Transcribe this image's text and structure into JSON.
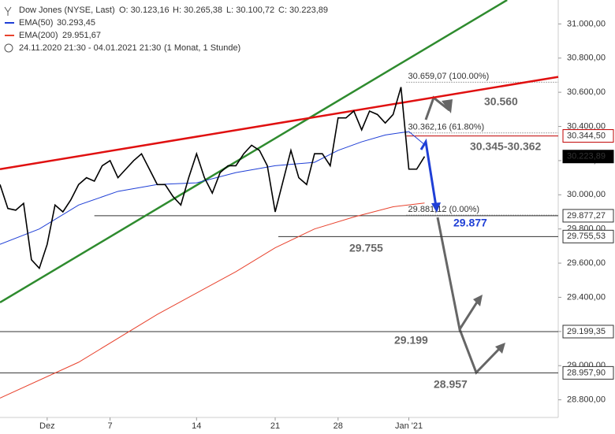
{
  "chart_data": {
    "type": "line",
    "header": {
      "instrument": "Dow Jones (NYSE, Last)",
      "ohlc": [
        "O: 30.123,16",
        "H: 30.265,38",
        "L: 30.100,72",
        "C: 30.223,89"
      ],
      "range": "24.11.2020 21:30 - 04.01.2021 21:30",
      "interval": "(1 Monat, 1 Stunde)"
    },
    "xlim": [
      0,
      71
    ],
    "xticks": [
      {
        "value": 6,
        "label": "Dez"
      },
      {
        "value": 14,
        "label": "7"
      },
      {
        "value": 25,
        "label": "14"
      },
      {
        "value": 35,
        "label": "21"
      },
      {
        "value": 43,
        "label": "28"
      },
      {
        "value": 52,
        "label": "Jan '21"
      }
    ],
    "ylim": [
      28600,
      31140
    ],
    "yticks": [
      {
        "value": 28800,
        "label": "28.800,00"
      },
      {
        "value": 29000,
        "label": "29.000,00"
      },
      {
        "value": 29200,
        "label": "29.200,00"
      },
      {
        "value": 29400,
        "label": "29.400,00"
      },
      {
        "value": 29600,
        "label": "29.600,00"
      },
      {
        "value": 29800,
        "label": "29.800,00"
      },
      {
        "value": 30000,
        "label": "30.000,00"
      },
      {
        "value": 30200,
        "label": "30.200,00"
      },
      {
        "value": 30400,
        "label": "30.400,00"
      },
      {
        "value": 30600,
        "label": "30.600,00"
      },
      {
        "value": 30800,
        "label": "30.800,00"
      },
      {
        "value": 31000,
        "label": "31.000,00"
      }
    ],
    "series": [
      {
        "name": "Dow Jones (NYSE, Last)",
        "color": "#000000",
        "x": [
          0,
          1,
          2,
          3,
          4,
          5,
          6,
          7,
          8,
          9,
          10,
          11,
          12,
          13,
          14,
          15,
          16,
          17,
          18,
          19,
          20,
          21,
          22,
          23,
          24,
          25,
          26,
          27,
          28,
          29,
          30,
          31,
          32,
          33,
          34,
          35,
          36,
          37,
          38,
          39,
          40,
          41,
          42,
          43,
          44,
          45,
          46,
          47,
          48,
          49,
          50,
          51,
          52,
          53,
          54
        ],
        "values": [
          30060,
          29920,
          29910,
          29950,
          29620,
          29570,
          29710,
          29940,
          29900,
          29970,
          30060,
          30100,
          30080,
          30170,
          30200,
          30100,
          30150,
          30200,
          30240,
          30150,
          30060,
          30060,
          29990,
          29940,
          30100,
          30240,
          30100,
          30010,
          30130,
          30170,
          30170,
          30240,
          30290,
          30260,
          30170,
          29900,
          30080,
          30260,
          30100,
          30060,
          30240,
          30240,
          30170,
          30450,
          30450,
          30490,
          30380,
          30490,
          30470,
          30420,
          30470,
          30630,
          30150,
          30150,
          30223.89
        ]
      },
      {
        "name": "EMA(50)",
        "value_label": "30.293,45",
        "color": "#1f3fd6",
        "x": [
          0,
          5,
          10,
          15,
          20,
          25,
          30,
          35,
          40,
          43,
          46,
          49,
          52,
          54
        ],
        "values": [
          29710,
          29800,
          29940,
          30020,
          30060,
          30070,
          30130,
          30170,
          30190,
          30260,
          30310,
          30350,
          30370,
          30293.45
        ]
      },
      {
        "name": "EMA(200)",
        "value_label": "29.951,67",
        "color": "#e8432e",
        "x": [
          0,
          10,
          20,
          30,
          35,
          40,
          45,
          50,
          54
        ],
        "values": [
          28810,
          29020,
          29300,
          29550,
          29690,
          29800,
          29870,
          29930,
          29951.67
        ]
      }
    ],
    "trendlines": [
      {
        "color": "#2e8b2e",
        "x": [
          0,
          64.5
        ],
        "values": [
          29370,
          31140
        ]
      },
      {
        "color": "#e01010",
        "x": [
          0,
          71
        ],
        "values": [
          30150,
          30690
        ]
      }
    ],
    "fib_levels": [
      {
        "value": 30659.07,
        "label": "30.659,07 (100.00%)",
        "x_start": 51.7
      },
      {
        "value": 30362.16,
        "label": "30.362,16 (61.80%)",
        "x_start": 51.7
      },
      {
        "value": 29881.12,
        "label": "29.881,12 (0.00%)",
        "x_start": 51.7
      }
    ],
    "levels": [
      {
        "value": 30344.5,
        "label": "30.344,50",
        "color": "#c00000",
        "x_start": 51.7
      },
      {
        "value": 30223.89,
        "label": "30.223,89",
        "color": "#000000",
        "x_start": 71
      },
      {
        "value": 29877.27,
        "label": "29.877,27",
        "color": "#333333",
        "x_start": 12
      },
      {
        "value": 29755.53,
        "label": "29.755,53",
        "color": "#333333",
        "x_start": 35.4
      },
      {
        "value": 29199.35,
        "label": "29.199,35",
        "color": "#333333",
        "x_start": 0
      },
      {
        "value": 28957.9,
        "label": "28.957,90",
        "color": "#333333",
        "x_start": 0
      }
    ],
    "annotations": [
      "30.560",
      "30.345-30.362",
      "29.877",
      "29.755",
      "29.199",
      "28.957"
    ]
  }
}
